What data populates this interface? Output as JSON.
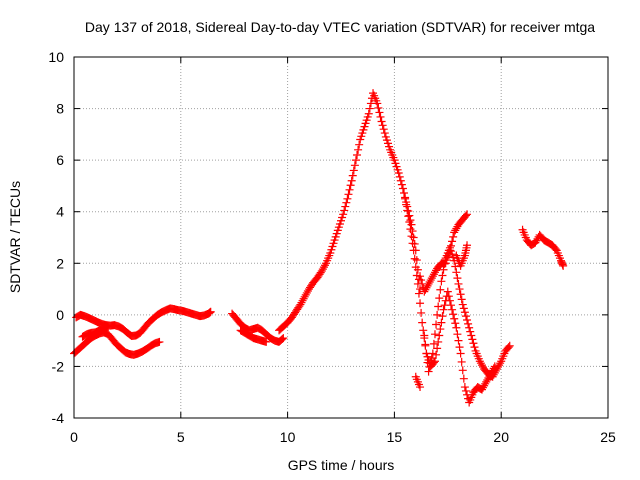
{
  "chart_data": {
    "type": "scatter",
    "title": "Day 137 of 2018, Sidereal Day-to-day VTEC variation (SDTVAR) for receiver mtga",
    "xlabel": "GPS time / hours",
    "ylabel": "SDTVAR / TECUs",
    "xlim": [
      0,
      25
    ],
    "ylim": [
      -4,
      10
    ],
    "xticks": [
      0,
      5,
      10,
      15,
      20,
      25
    ],
    "yticks": [
      -4,
      -2,
      0,
      2,
      4,
      6,
      8,
      10
    ],
    "grid": true,
    "marker": "+",
    "marker_color": "#ff0000",
    "series": [
      {
        "points": [
          [
            0.0,
            -1.5
          ],
          [
            0.2,
            -1.35
          ],
          [
            0.4,
            -1.2
          ],
          [
            0.6,
            -1.05
          ],
          [
            0.8,
            -0.9
          ],
          [
            1.0,
            -0.8
          ],
          [
            1.2,
            -0.72
          ],
          [
            1.4,
            -0.68
          ],
          [
            1.6,
            -0.75
          ],
          [
            1.8,
            -0.95
          ],
          [
            2.0,
            -1.15
          ],
          [
            2.2,
            -1.3
          ],
          [
            2.4,
            -1.45
          ],
          [
            2.6,
            -1.52
          ],
          [
            2.8,
            -1.55
          ],
          [
            3.0,
            -1.5
          ],
          [
            3.2,
            -1.42
          ],
          [
            3.4,
            -1.32
          ],
          [
            3.6,
            -1.2
          ],
          [
            3.8,
            -1.1
          ],
          [
            4.0,
            -1.05
          ],
          [
            0.1,
            -0.1
          ],
          [
            0.3,
            0.0
          ],
          [
            0.5,
            -0.05
          ],
          [
            0.7,
            -0.12
          ],
          [
            0.9,
            -0.2
          ],
          [
            1.1,
            -0.28
          ],
          [
            1.3,
            -0.35
          ],
          [
            1.5,
            -0.4
          ],
          [
            1.7,
            -0.42
          ],
          [
            1.9,
            -0.4
          ],
          [
            2.1,
            -0.45
          ],
          [
            2.3,
            -0.55
          ],
          [
            2.5,
            -0.7
          ],
          [
            2.7,
            -0.82
          ],
          [
            2.9,
            -0.8
          ],
          [
            3.1,
            -0.7
          ],
          [
            3.3,
            -0.5
          ],
          [
            3.5,
            -0.3
          ],
          [
            3.7,
            -0.15
          ],
          [
            3.9,
            0.0
          ],
          [
            4.1,
            0.1
          ],
          [
            4.3,
            0.18
          ],
          [
            4.5,
            0.25
          ],
          [
            4.7,
            0.22
          ],
          [
            4.9,
            0.18
          ],
          [
            5.1,
            0.15
          ],
          [
            5.3,
            0.1
          ],
          [
            5.5,
            0.05
          ],
          [
            5.7,
            0.0
          ],
          [
            5.9,
            -0.05
          ],
          [
            6.1,
            -0.02
          ],
          [
            6.3,
            0.05
          ],
          [
            6.4,
            0.12
          ],
          [
            0.4,
            -0.85
          ],
          [
            0.6,
            -0.75
          ],
          [
            0.8,
            -0.7
          ],
          [
            1.0,
            -0.68
          ],
          [
            1.2,
            -0.6
          ],
          [
            1.4,
            -0.5
          ],
          [
            1.6,
            -0.45
          ],
          [
            7.4,
            0.05
          ],
          [
            7.6,
            -0.15
          ],
          [
            7.8,
            -0.35
          ],
          [
            8.0,
            -0.5
          ],
          [
            8.2,
            -0.6
          ],
          [
            8.4,
            -0.55
          ],
          [
            8.6,
            -0.5
          ],
          [
            8.8,
            -0.6
          ],
          [
            9.0,
            -0.75
          ],
          [
            9.2,
            -0.9
          ],
          [
            9.4,
            -1.0
          ],
          [
            9.6,
            -1.05
          ],
          [
            9.8,
            -0.9
          ],
          [
            7.8,
            -0.6
          ],
          [
            8.0,
            -0.7
          ],
          [
            8.2,
            -0.8
          ],
          [
            8.4,
            -0.9
          ],
          [
            8.6,
            -0.95
          ],
          [
            8.8,
            -1.0
          ],
          [
            9.0,
            -1.05
          ],
          [
            9.6,
            -0.6
          ],
          [
            9.8,
            -0.45
          ],
          [
            10.0,
            -0.3
          ],
          [
            10.2,
            -0.1
          ],
          [
            10.4,
            0.15
          ],
          [
            10.6,
            0.4
          ],
          [
            10.8,
            0.7
          ],
          [
            11.0,
            1.0
          ],
          [
            11.2,
            1.25
          ],
          [
            11.4,
            1.45
          ],
          [
            11.6,
            1.7
          ],
          [
            11.8,
            2.0
          ],
          [
            12.0,
            2.4
          ],
          [
            12.2,
            2.9
          ],
          [
            12.4,
            3.4
          ],
          [
            12.6,
            3.9
          ],
          [
            12.8,
            4.5
          ],
          [
            13.0,
            5.2
          ],
          [
            13.2,
            6.0
          ],
          [
            13.4,
            6.8
          ],
          [
            13.6,
            7.3
          ],
          [
            13.8,
            7.8
          ],
          [
            14.0,
            8.6
          ],
          [
            14.2,
            8.2
          ],
          [
            14.4,
            7.5
          ],
          [
            14.6,
            6.9
          ],
          [
            14.8,
            6.4
          ],
          [
            15.0,
            6.0
          ],
          [
            15.2,
            5.5
          ],
          [
            15.4,
            4.9
          ],
          [
            15.6,
            4.2
          ],
          [
            15.8,
            3.5
          ],
          [
            16.0,
            2.5
          ],
          [
            16.2,
            1.0
          ],
          [
            16.4,
            -0.8
          ],
          [
            16.6,
            -2.2
          ],
          [
            16.8,
            -1.5
          ],
          [
            17.0,
            0.0
          ],
          [
            17.2,
            1.3
          ],
          [
            17.4,
            2.2
          ],
          [
            17.6,
            2.6
          ],
          [
            17.8,
            2.1
          ],
          [
            18.0,
            1.2
          ],
          [
            18.2,
            0.4
          ],
          [
            18.4,
            -0.2
          ],
          [
            18.6,
            -0.8
          ],
          [
            18.8,
            -1.4
          ],
          [
            19.0,
            -1.8
          ],
          [
            19.2,
            -2.1
          ],
          [
            19.4,
            -2.3
          ],
          [
            19.6,
            -2.4
          ],
          [
            19.8,
            -2.1
          ],
          [
            20.0,
            -1.8
          ],
          [
            20.2,
            -1.4
          ],
          [
            20.4,
            -1.2
          ],
          [
            15.5,
            4.5
          ],
          [
            15.7,
            3.6
          ],
          [
            15.9,
            2.5
          ],
          [
            16.1,
            1.2
          ],
          [
            16.3,
            -0.3
          ],
          [
            16.5,
            -1.5
          ],
          [
            16.7,
            -2.0
          ],
          [
            16.9,
            -1.8
          ],
          [
            17.1,
            -0.8
          ],
          [
            17.3,
            0.2
          ],
          [
            17.5,
            0.9
          ],
          [
            17.7,
            0.2
          ],
          [
            17.9,
            -0.5
          ],
          [
            18.1,
            -1.5
          ],
          [
            18.3,
            -2.8
          ],
          [
            18.5,
            -3.4
          ],
          [
            18.7,
            -3.0
          ],
          [
            18.9,
            -2.8
          ],
          [
            19.1,
            -2.9
          ],
          [
            19.3,
            -2.6
          ],
          [
            19.5,
            -2.3
          ],
          [
            19.7,
            -2.0
          ],
          [
            16.2,
            1.5
          ],
          [
            16.4,
            0.9
          ],
          [
            16.6,
            1.2
          ],
          [
            16.8,
            1.5
          ],
          [
            17.0,
            1.8
          ],
          [
            17.2,
            2.0
          ],
          [
            17.4,
            2.0
          ],
          [
            17.6,
            2.5
          ],
          [
            17.8,
            3.2
          ],
          [
            18.0,
            3.5
          ],
          [
            18.2,
            3.7
          ],
          [
            18.4,
            3.9
          ],
          [
            16.0,
            -2.4
          ],
          [
            16.2,
            -2.8
          ],
          [
            17.9,
            2.3
          ],
          [
            18.1,
            1.9
          ],
          [
            18.3,
            2.3
          ],
          [
            18.4,
            2.7
          ],
          [
            21.0,
            3.3
          ],
          [
            21.2,
            2.9
          ],
          [
            21.4,
            2.7
          ],
          [
            21.6,
            2.8
          ],
          [
            21.8,
            3.1
          ],
          [
            22.0,
            2.9
          ],
          [
            22.2,
            2.8
          ],
          [
            22.4,
            2.7
          ],
          [
            22.6,
            2.5
          ],
          [
            22.8,
            2.1
          ],
          [
            22.9,
            1.9
          ]
        ]
      }
    ]
  }
}
